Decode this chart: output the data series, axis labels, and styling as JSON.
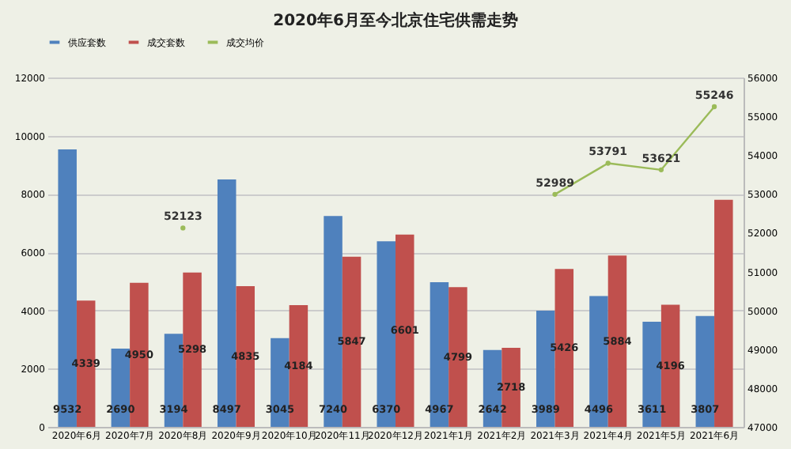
{
  "chart_data": {
    "type": "bar",
    "title": "2020年6月至今北京住宅供需走势",
    "categories": [
      "2020年6月",
      "2020年7月",
      "2020年8月",
      "2020年9月",
      "2020年10月",
      "2020年11月",
      "2020年12月",
      "2021年1月",
      "2021年2月",
      "2021年3月",
      "2021年4月",
      "2021年5月",
      "2021年6月"
    ],
    "series": [
      {
        "name": "供应套数",
        "color": "#4f81bd",
        "values": [
          9532,
          2690,
          3194,
          8497,
          3045,
          7240,
          6370,
          4967,
          2642,
          3989,
          4496,
          3611,
          3807
        ],
        "value_labels": [
          "9532",
          "2690",
          "3194",
          "8497",
          "3045",
          "7240",
          "6370",
          "4967",
          "2642",
          "3989",
          "4496",
          "3611",
          "3807"
        ]
      },
      {
        "name": "成交套数",
        "color": "#c0504d",
        "values": [
          4339,
          4950,
          5298,
          4835,
          4184,
          5847,
          6601,
          4799,
          2718,
          5426,
          5884,
          4196,
          7800
        ],
        "value_labels": [
          "4339",
          "4950",
          "5298",
          "4835",
          "4184",
          "5847",
          "6601",
          "4799",
          "2718",
          "5426",
          "5884",
          "4196",
          null
        ]
      },
      {
        "name": "成交均价",
        "type": "line",
        "axis": "y2",
        "marker": "circle",
        "color": "#9bbb59",
        "values": [
          null,
          null,
          52123,
          null,
          null,
          null,
          null,
          null,
          null,
          52989,
          53791,
          53621,
          55246
        ],
        "value_labels": [
          null,
          null,
          "52123",
          null,
          null,
          null,
          null,
          null,
          null,
          "52989",
          "53791",
          "53621",
          "55246"
        ]
      }
    ],
    "ylim": [
      0,
      12000
    ],
    "yticks": [
      0,
      2000,
      4000,
      6000,
      8000,
      10000,
      12000
    ],
    "y2lim": [
      47000,
      56000
    ],
    "y2ticks": [
      47000,
      48000,
      49000,
      50000,
      51000,
      52000,
      53000,
      54000,
      55000,
      56000
    ],
    "grid": "y",
    "legend": "top"
  }
}
